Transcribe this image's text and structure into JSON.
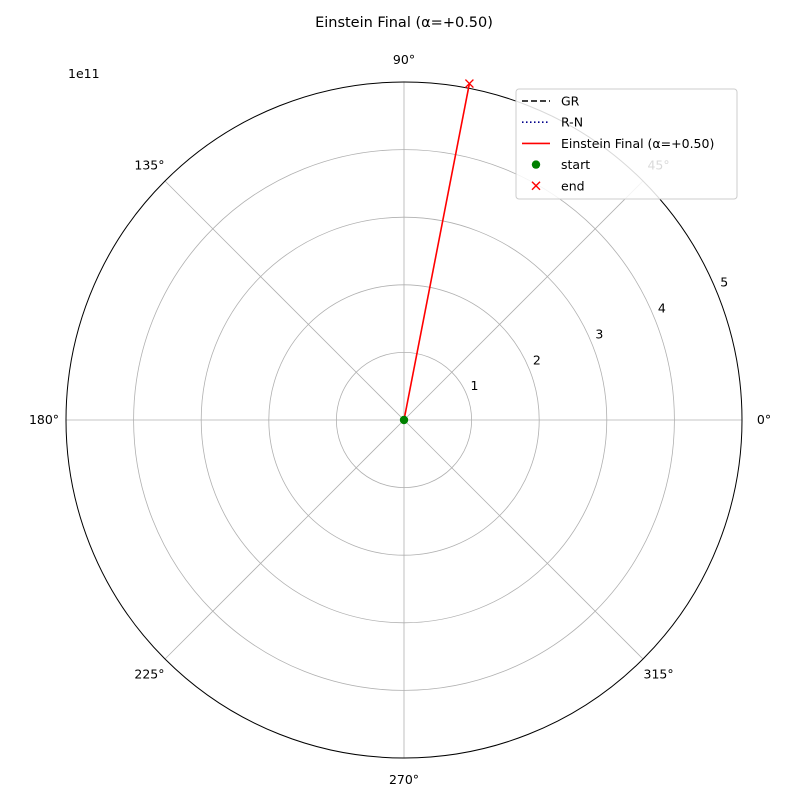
{
  "chart_data": {
    "type": "line",
    "projection": "polar",
    "title": "Einstein Final (α=+0.50)",
    "r_offset_label": "1e11",
    "rlim": [
      0,
      5.0
    ],
    "r_ticks": [
      1,
      2,
      3,
      4,
      5
    ],
    "r_tick_labels": [
      "1",
      "2",
      "3",
      "4",
      "5"
    ],
    "r_label_angle_deg": 22.5,
    "theta_ticks_deg": [
      0,
      45,
      90,
      135,
      180,
      225,
      270,
      315
    ],
    "theta_tick_labels": [
      "0°",
      "45°",
      "90°",
      "135°",
      "180°",
      "225°",
      "270°",
      "315°"
    ],
    "grid": true,
    "legend_position": "top-right",
    "series": [
      {
        "name": "GR",
        "style": "dashed",
        "color": "#000000",
        "points": []
      },
      {
        "name": "R-N",
        "style": "dotted",
        "color": "#00008b",
        "points": []
      },
      {
        "name": "Einstein Final (α=+0.50)",
        "style": "solid",
        "color": "#ff0000",
        "points": [
          {
            "theta_deg": 0,
            "r": 0
          },
          {
            "theta_deg": 79,
            "r": 5.07
          }
        ]
      }
    ],
    "markers": [
      {
        "name": "start",
        "marker": "circle",
        "color": "#008000",
        "theta_deg": 0,
        "r": 0
      },
      {
        "name": "end",
        "marker": "x",
        "color": "#ff0000",
        "theta_deg": 79,
        "r": 5.07
      }
    ]
  }
}
